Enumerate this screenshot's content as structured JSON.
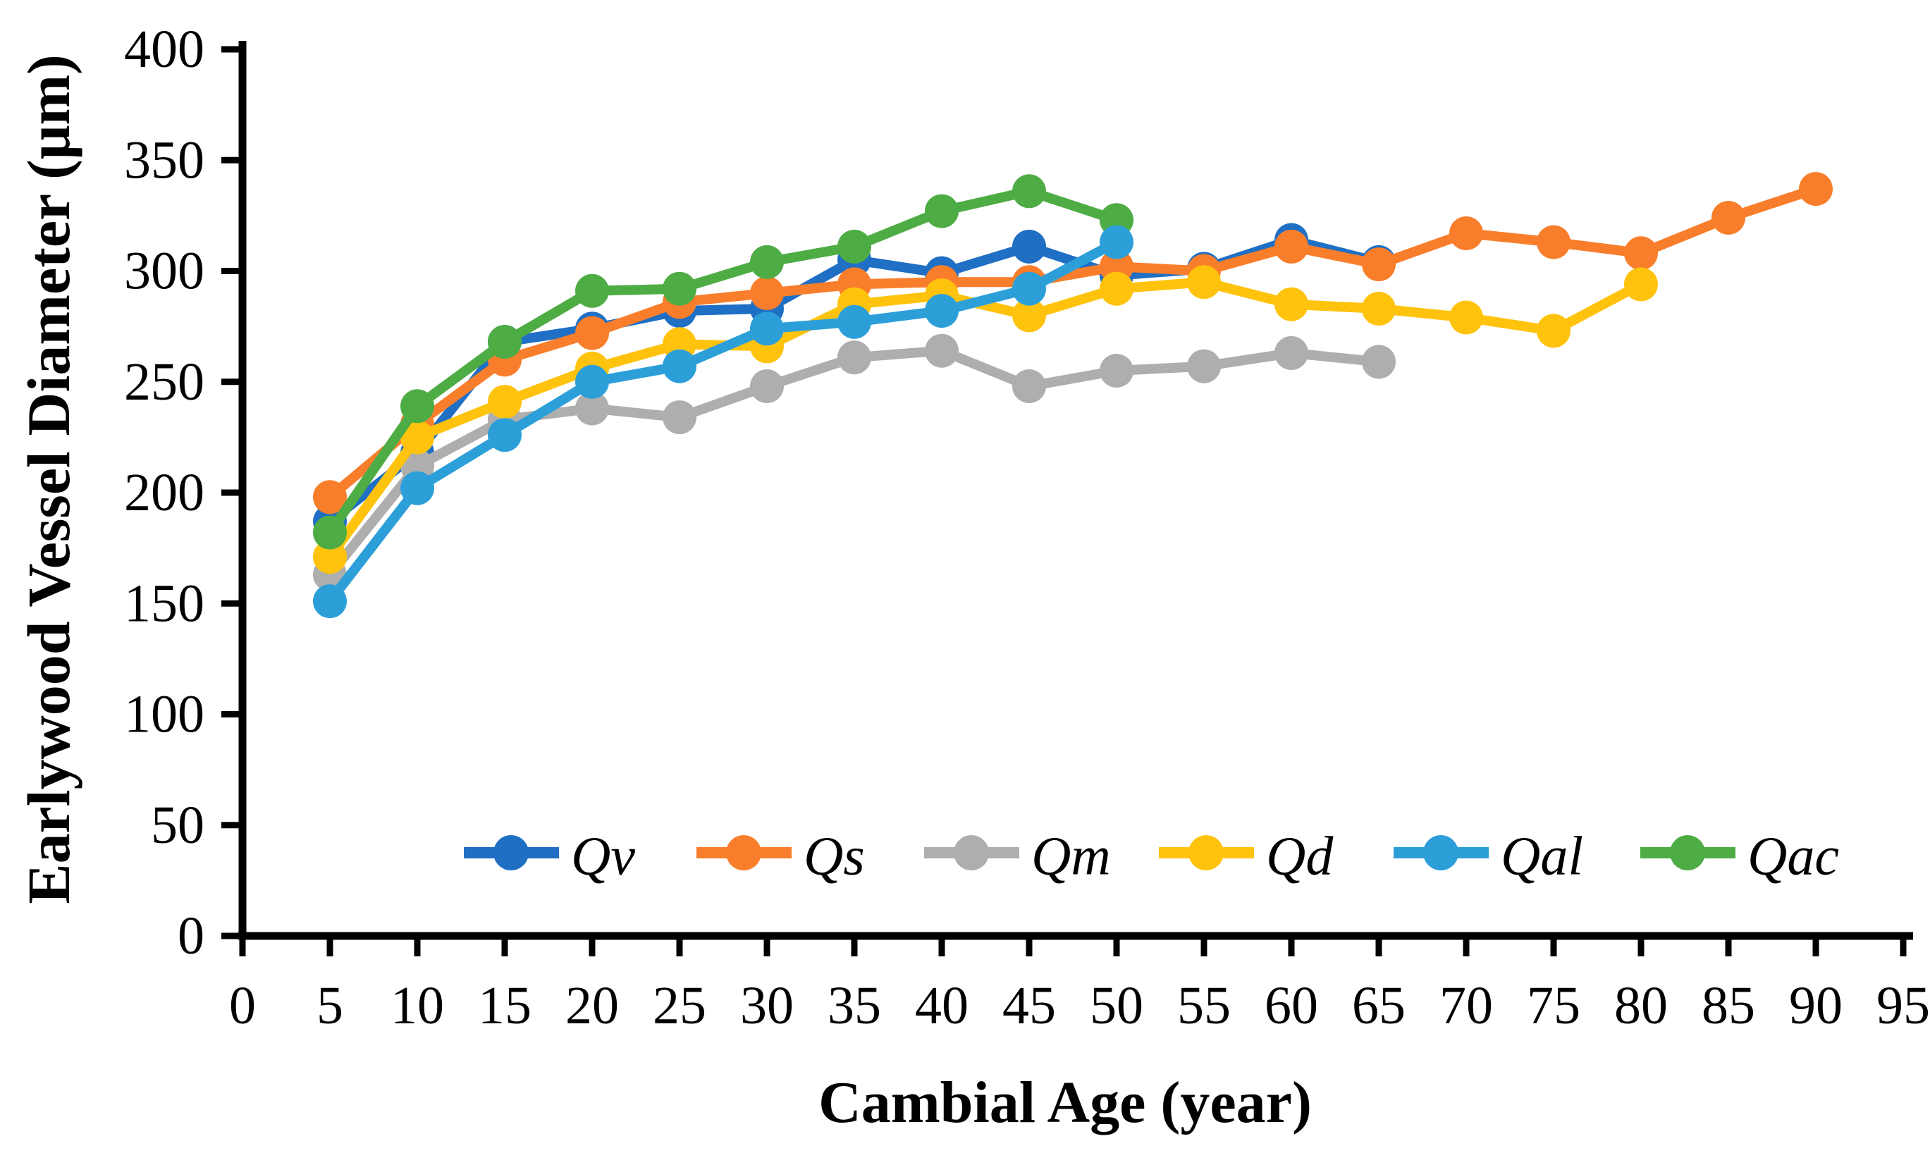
{
  "figure": {
    "background_color": "#ffffff",
    "axis_color": "#000000"
  },
  "chart_data": {
    "type": "line",
    "title": "",
    "xlabel": "Cambial Age (year)",
    "ylabel": "Earlywood Vessel Diameter (μm)",
    "xlim": [
      0,
      95
    ],
    "ylim": [
      0,
      400
    ],
    "x_ticks": [
      0,
      5,
      10,
      15,
      20,
      25,
      30,
      35,
      40,
      45,
      50,
      55,
      60,
      65,
      70,
      75,
      80,
      85,
      90,
      95
    ],
    "y_ticks": [
      0,
      50,
      100,
      150,
      200,
      250,
      300,
      350,
      400
    ],
    "grid": false,
    "legend_position": "inside-bottom-center",
    "x": [
      5,
      10,
      15,
      20,
      25,
      30,
      35,
      40,
      45,
      50,
      55,
      60,
      65,
      70,
      75,
      80,
      85,
      90
    ],
    "series": [
      {
        "name": "Qv",
        "color": "#1F6FC4",
        "marker": "circle",
        "values": [
          187,
          218,
          268,
          274,
          282,
          283,
          305,
          299,
          311,
          298,
          301,
          314,
          304,
          null,
          null,
          null,
          null,
          null
        ]
      },
      {
        "name": "Qs",
        "color": "#F97E2B",
        "marker": "circle",
        "values": [
          198,
          231,
          260,
          272,
          286,
          290,
          294,
          295,
          295,
          302,
          300,
          311,
          303,
          317,
          313,
          308,
          324,
          337
        ]
      },
      {
        "name": "Qm",
        "color": "#AEAEAE",
        "marker": "circle",
        "values": [
          163,
          212,
          233,
          238,
          234,
          248,
          261,
          264,
          248,
          255,
          257,
          263,
          259,
          null,
          null,
          null,
          null,
          null
        ]
      },
      {
        "name": "Qd",
        "color": "#FFC30E",
        "marker": "circle",
        "values": [
          171,
          225,
          241,
          256,
          267,
          266,
          285,
          289,
          280,
          292,
          295,
          285,
          283,
          279,
          273,
          294,
          null,
          null
        ]
      },
      {
        "name": "Qal",
        "color": "#2C9FD9",
        "marker": "circle",
        "values": [
          151,
          202,
          226,
          250,
          257,
          274,
          277,
          282,
          292,
          313,
          null,
          null,
          null,
          null,
          null,
          null,
          null,
          null
        ]
      },
      {
        "name": "Qac",
        "color": "#4EAC45",
        "marker": "circle",
        "values": [
          182,
          239,
          268,
          291,
          292,
          304,
          311,
          327,
          336,
          323,
          null,
          null,
          null,
          null,
          null,
          null,
          null,
          null
        ]
      }
    ],
    "draw_order": [
      "Qv",
      "Qs",
      "Qm",
      "Qd",
      "Qac",
      "Qal"
    ],
    "legend": {
      "items": [
        "Qv",
        "Qs",
        "Qm",
        "Qd",
        "Qal",
        "Qac"
      ]
    }
  }
}
